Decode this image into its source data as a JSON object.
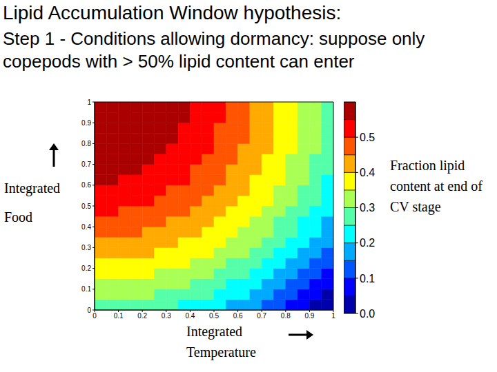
{
  "chart_data": {
    "type": "heatmap",
    "title": "Lipid Accumulation Window hypothesis:",
    "subtitle": "Step 1 - Conditions allowing dormancy: suppose only copepods with > 50% lipid content can enter",
    "x_label": "Integrated Temperature",
    "y_label": "Integrated Food",
    "xlim": [
      0,
      1
    ],
    "ylim": [
      0,
      1
    ],
    "xticks": [
      0,
      0.1,
      0.2,
      0.3,
      0.4,
      0.5,
      0.6,
      0.7,
      0.8,
      0.9,
      1
    ],
    "yticks": [
      0,
      0.1,
      0.2,
      0.3,
      0.4,
      0.5,
      0.6,
      0.7,
      0.8,
      0.9,
      1
    ],
    "grid": false,
    "x_edges": [
      0,
      0.05,
      0.1,
      0.15,
      0.2,
      0.25,
      0.3,
      0.35,
      0.4,
      0.45,
      0.5,
      0.55,
      0.6,
      0.65,
      0.7,
      0.75,
      0.8,
      0.85,
      0.9,
      0.95,
      1
    ],
    "y_edges": [
      0,
      0.05,
      0.1,
      0.15,
      0.2,
      0.25,
      0.3,
      0.35,
      0.4,
      0.45,
      0.5,
      0.55,
      0.6,
      0.65,
      0.7,
      0.75,
      0.8,
      0.85,
      0.9,
      0.95,
      1
    ],
    "z": [
      [
        0.28,
        0.28,
        0.28,
        0.28,
        0.27,
        0.26,
        0.25,
        0.24,
        0.23,
        0.22,
        0.2,
        0.19,
        0.17,
        0.15,
        0.13,
        0.11,
        0.08,
        0.06,
        0.03,
        0.01
      ],
      [
        0.31,
        0.31,
        0.31,
        0.3,
        0.3,
        0.29,
        0.28,
        0.27,
        0.26,
        0.25,
        0.23,
        0.21,
        0.2,
        0.18,
        0.16,
        0.14,
        0.11,
        0.09,
        0.06,
        0.03
      ],
      [
        0.34,
        0.34,
        0.34,
        0.33,
        0.33,
        0.32,
        0.31,
        0.3,
        0.29,
        0.27,
        0.26,
        0.24,
        0.22,
        0.2,
        0.18,
        0.16,
        0.14,
        0.11,
        0.09,
        0.06
      ],
      [
        0.37,
        0.37,
        0.36,
        0.36,
        0.35,
        0.34,
        0.33,
        0.32,
        0.31,
        0.3,
        0.28,
        0.27,
        0.25,
        0.23,
        0.21,
        0.19,
        0.16,
        0.14,
        0.11,
        0.08
      ],
      [
        0.39,
        0.39,
        0.39,
        0.38,
        0.38,
        0.37,
        0.36,
        0.35,
        0.34,
        0.32,
        0.31,
        0.29,
        0.27,
        0.25,
        0.23,
        0.21,
        0.19,
        0.16,
        0.14,
        0.11
      ],
      [
        0.42,
        0.41,
        0.41,
        0.41,
        0.4,
        0.39,
        0.38,
        0.37,
        0.36,
        0.35,
        0.33,
        0.31,
        0.3,
        0.28,
        0.25,
        0.23,
        0.21,
        0.18,
        0.16,
        0.13
      ],
      [
        0.44,
        0.44,
        0.43,
        0.43,
        0.42,
        0.41,
        0.4,
        0.39,
        0.38,
        0.37,
        0.35,
        0.33,
        0.32,
        0.3,
        0.28,
        0.25,
        0.23,
        0.2,
        0.18,
        0.15
      ],
      [
        0.46,
        0.46,
        0.45,
        0.45,
        0.44,
        0.44,
        0.43,
        0.41,
        0.4,
        0.39,
        0.37,
        0.35,
        0.34,
        0.32,
        0.3,
        0.27,
        0.25,
        0.22,
        0.2,
        0.17
      ],
      [
        0.48,
        0.48,
        0.47,
        0.47,
        0.46,
        0.45,
        0.44,
        0.43,
        0.42,
        0.41,
        0.39,
        0.37,
        0.35,
        0.33,
        0.31,
        0.29,
        0.27,
        0.24,
        0.21,
        0.19
      ],
      [
        0.5,
        0.5,
        0.49,
        0.49,
        0.48,
        0.47,
        0.46,
        0.45,
        0.44,
        0.42,
        0.41,
        0.39,
        0.37,
        0.35,
        0.33,
        0.31,
        0.28,
        0.26,
        0.23,
        0.2
      ],
      [
        0.52,
        0.51,
        0.51,
        0.51,
        0.5,
        0.49,
        0.48,
        0.47,
        0.45,
        0.44,
        0.42,
        0.41,
        0.39,
        0.37,
        0.35,
        0.32,
        0.3,
        0.27,
        0.25,
        0.22
      ],
      [
        0.53,
        0.53,
        0.53,
        0.52,
        0.51,
        0.51,
        0.49,
        0.48,
        0.47,
        0.45,
        0.44,
        0.42,
        0.4,
        0.38,
        0.36,
        0.34,
        0.31,
        0.29,
        0.26,
        0.23
      ],
      [
        0.55,
        0.55,
        0.54,
        0.54,
        0.53,
        0.52,
        0.51,
        0.5,
        0.48,
        0.47,
        0.45,
        0.43,
        0.41,
        0.39,
        0.37,
        0.35,
        0.32,
        0.3,
        0.27,
        0.24
      ],
      [
        0.56,
        0.56,
        0.55,
        0.55,
        0.54,
        0.53,
        0.52,
        0.51,
        0.49,
        0.48,
        0.46,
        0.44,
        0.43,
        0.4,
        0.38,
        0.36,
        0.33,
        0.31,
        0.28,
        0.25
      ],
      [
        0.57,
        0.57,
        0.57,
        0.56,
        0.55,
        0.54,
        0.53,
        0.52,
        0.51,
        0.49,
        0.47,
        0.45,
        0.44,
        0.41,
        0.39,
        0.37,
        0.34,
        0.32,
        0.29,
        0.26
      ],
      [
        0.58,
        0.58,
        0.58,
        0.57,
        0.56,
        0.55,
        0.54,
        0.53,
        0.51,
        0.5,
        0.48,
        0.46,
        0.44,
        0.42,
        0.4,
        0.38,
        0.35,
        0.33,
        0.3,
        0.27
      ],
      [
        0.59,
        0.59,
        0.59,
        0.58,
        0.57,
        0.56,
        0.55,
        0.54,
        0.52,
        0.51,
        0.49,
        0.47,
        0.45,
        0.43,
        0.41,
        0.38,
        0.36,
        0.33,
        0.3,
        0.28
      ],
      [
        0.6,
        0.6,
        0.59,
        0.59,
        0.58,
        0.57,
        0.55,
        0.54,
        0.53,
        0.51,
        0.49,
        0.47,
        0.45,
        0.43,
        0.41,
        0.39,
        0.36,
        0.34,
        0.31,
        0.28
      ],
      [
        0.61,
        0.61,
        0.6,
        0.59,
        0.58,
        0.57,
        0.56,
        0.55,
        0.53,
        0.51,
        0.5,
        0.48,
        0.46,
        0.44,
        0.41,
        0.39,
        0.37,
        0.34,
        0.31,
        0.28
      ],
      [
        0.62,
        0.61,
        0.6,
        0.59,
        0.58,
        0.57,
        0.56,
        0.55,
        0.53,
        0.52,
        0.5,
        0.48,
        0.46,
        0.44,
        0.42,
        0.39,
        0.37,
        0.34,
        0.31,
        0.28
      ]
    ],
    "colorbar": {
      "label": "Fraction lipid content at end of CV stage",
      "range": [
        0,
        0.6
      ],
      "ticks": [
        {
          "value": 0,
          "label": "0.0"
        },
        0.1,
        0.2,
        0.3,
        0.4,
        0.5
      ],
      "levels": [
        0,
        0.05,
        0.1,
        0.15,
        0.2,
        0.25,
        0.3,
        0.35,
        0.4,
        0.45,
        0.5,
        0.55,
        0.6
      ]
    }
  }
}
